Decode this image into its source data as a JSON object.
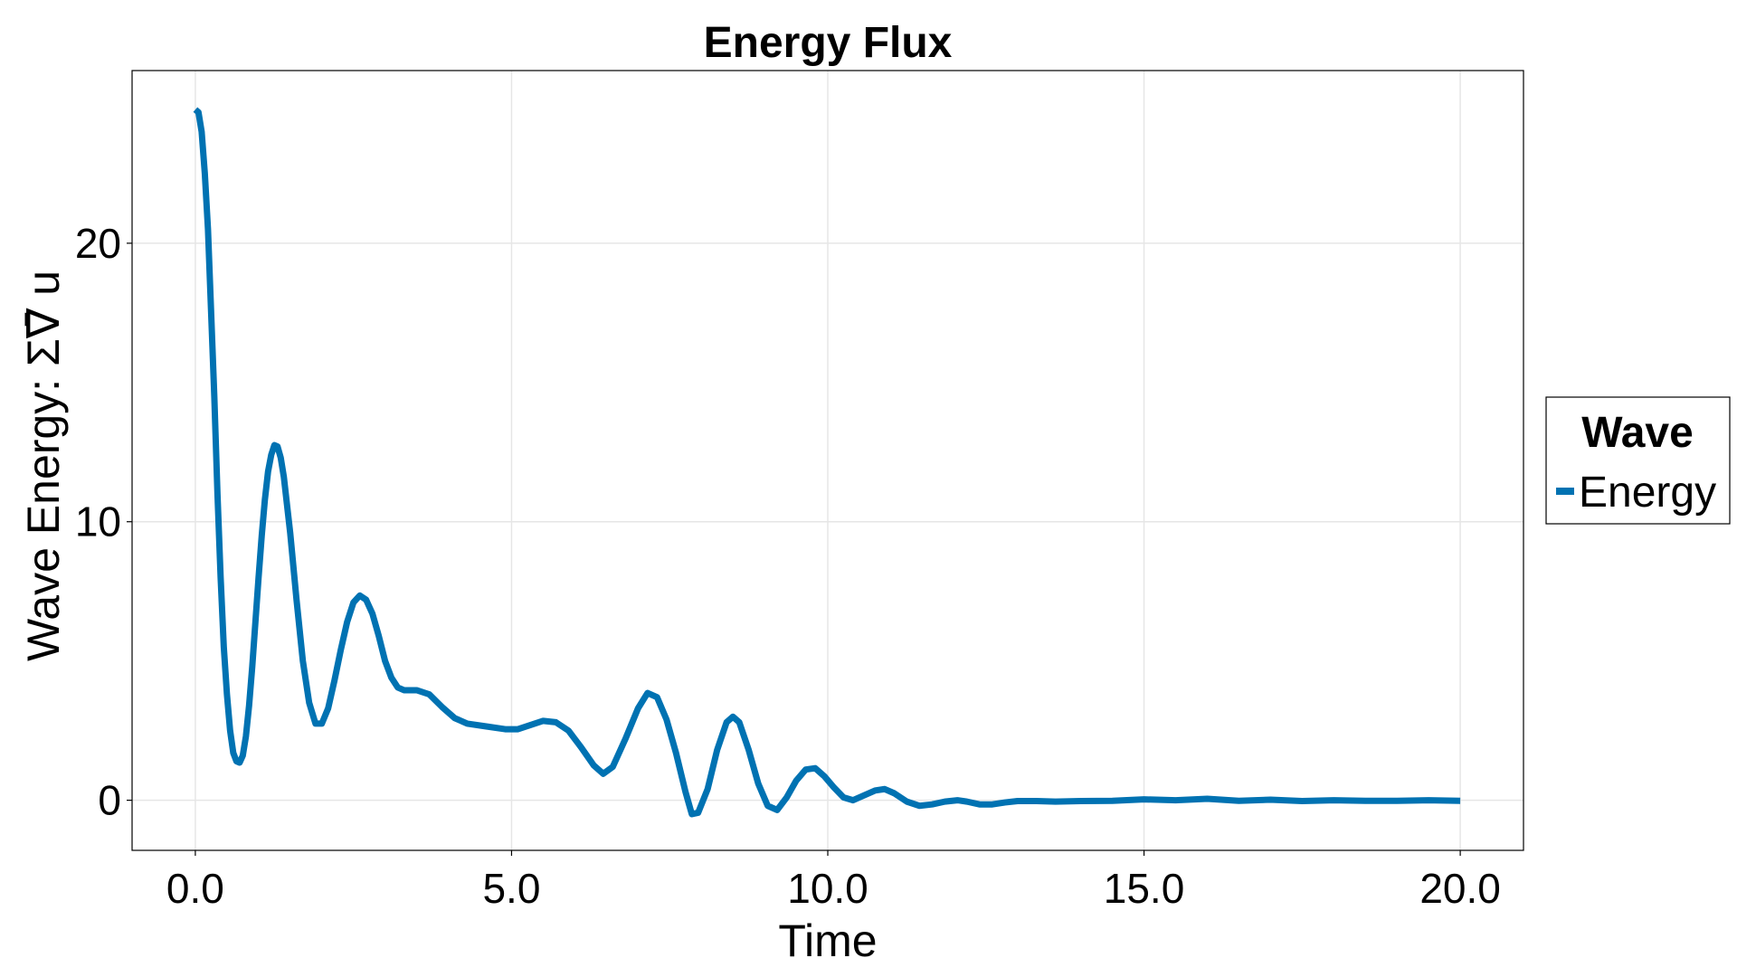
{
  "chart_data": {
    "type": "line",
    "title": "Energy Flux",
    "xlabel": "Time",
    "ylabel": "Wave Energy: Σ∇̄ u",
    "xlim": [
      -1.0,
      21.0
    ],
    "ylim": [
      -1.8,
      26.2
    ],
    "xticks": [
      0,
      5,
      10,
      15,
      20
    ],
    "xtick_labels": [
      "0.0",
      "5.0",
      "10.0",
      "15.0",
      "20.0"
    ],
    "yticks": [
      0,
      10,
      20
    ],
    "ytick_labels": [
      "0",
      "10",
      "20"
    ],
    "grid": true,
    "legend": {
      "title": "Wave",
      "placement": "outside-right",
      "entries": [
        "Energy"
      ]
    },
    "series": [
      {
        "name": "Energy",
        "color": "#0072b2",
        "points": [
          [
            0.0,
            24.8
          ],
          [
            0.05,
            24.7
          ],
          [
            0.1,
            24.0
          ],
          [
            0.15,
            22.5
          ],
          [
            0.2,
            20.5
          ],
          [
            0.25,
            17.5
          ],
          [
            0.3,
            14.5
          ],
          [
            0.35,
            11.0
          ],
          [
            0.4,
            8.0
          ],
          [
            0.45,
            5.5
          ],
          [
            0.5,
            3.8
          ],
          [
            0.55,
            2.5
          ],
          [
            0.6,
            1.7
          ],
          [
            0.65,
            1.4
          ],
          [
            0.7,
            1.35
          ],
          [
            0.75,
            1.6
          ],
          [
            0.8,
            2.3
          ],
          [
            0.85,
            3.4
          ],
          [
            0.9,
            4.8
          ],
          [
            0.95,
            6.4
          ],
          [
            1.0,
            8.0
          ],
          [
            1.05,
            9.5
          ],
          [
            1.1,
            10.8
          ],
          [
            1.15,
            11.8
          ],
          [
            1.2,
            12.4
          ],
          [
            1.25,
            12.75
          ],
          [
            1.3,
            12.7
          ],
          [
            1.35,
            12.3
          ],
          [
            1.4,
            11.6
          ],
          [
            1.5,
            9.6
          ],
          [
            1.6,
            7.2
          ],
          [
            1.7,
            5.0
          ],
          [
            1.8,
            3.5
          ],
          [
            1.9,
            2.75
          ],
          [
            2.0,
            2.75
          ],
          [
            2.1,
            3.3
          ],
          [
            2.2,
            4.3
          ],
          [
            2.3,
            5.4
          ],
          [
            2.4,
            6.4
          ],
          [
            2.5,
            7.1
          ],
          [
            2.6,
            7.35
          ],
          [
            2.7,
            7.2
          ],
          [
            2.8,
            6.7
          ],
          [
            2.9,
            5.9
          ],
          [
            3.0,
            5.0
          ],
          [
            3.1,
            4.4
          ],
          [
            3.2,
            4.05
          ],
          [
            3.3,
            3.95
          ],
          [
            3.5,
            3.95
          ],
          [
            3.7,
            3.8
          ],
          [
            3.9,
            3.35
          ],
          [
            4.1,
            2.95
          ],
          [
            4.3,
            2.75
          ],
          [
            4.6,
            2.65
          ],
          [
            4.9,
            2.55
          ],
          [
            5.1,
            2.55
          ],
          [
            5.3,
            2.7
          ],
          [
            5.5,
            2.85
          ],
          [
            5.7,
            2.8
          ],
          [
            5.9,
            2.5
          ],
          [
            6.1,
            1.9
          ],
          [
            6.3,
            1.25
          ],
          [
            6.45,
            0.95
          ],
          [
            6.6,
            1.2
          ],
          [
            6.8,
            2.2
          ],
          [
            7.0,
            3.3
          ],
          [
            7.15,
            3.85
          ],
          [
            7.3,
            3.7
          ],
          [
            7.45,
            2.9
          ],
          [
            7.6,
            1.7
          ],
          [
            7.75,
            0.3
          ],
          [
            7.85,
            -0.5
          ],
          [
            7.95,
            -0.45
          ],
          [
            8.1,
            0.4
          ],
          [
            8.25,
            1.8
          ],
          [
            8.4,
            2.8
          ],
          [
            8.5,
            3.0
          ],
          [
            8.6,
            2.8
          ],
          [
            8.75,
            1.8
          ],
          [
            8.9,
            0.6
          ],
          [
            9.05,
            -0.2
          ],
          [
            9.2,
            -0.35
          ],
          [
            9.35,
            0.1
          ],
          [
            9.5,
            0.7
          ],
          [
            9.65,
            1.1
          ],
          [
            9.8,
            1.15
          ],
          [
            9.95,
            0.85
          ],
          [
            10.1,
            0.45
          ],
          [
            10.25,
            0.1
          ],
          [
            10.4,
            0.0
          ],
          [
            10.55,
            0.15
          ],
          [
            10.75,
            0.35
          ],
          [
            10.9,
            0.4
          ],
          [
            11.05,
            0.25
          ],
          [
            11.25,
            -0.05
          ],
          [
            11.45,
            -0.2
          ],
          [
            11.65,
            -0.15
          ],
          [
            11.85,
            -0.05
          ],
          [
            12.05,
            0.0
          ],
          [
            12.2,
            -0.05
          ],
          [
            12.4,
            -0.15
          ],
          [
            12.6,
            -0.15
          ],
          [
            12.8,
            -0.08
          ],
          [
            13.0,
            -0.03
          ],
          [
            13.3,
            -0.03
          ],
          [
            13.6,
            -0.05
          ],
          [
            14.0,
            -0.03
          ],
          [
            14.5,
            -0.02
          ],
          [
            15.0,
            0.03
          ],
          [
            15.5,
            0.0
          ],
          [
            16.0,
            0.05
          ],
          [
            16.5,
            -0.02
          ],
          [
            17.0,
            0.02
          ],
          [
            17.5,
            -0.03
          ],
          [
            18.0,
            0.0
          ],
          [
            18.5,
            -0.02
          ],
          [
            19.0,
            -0.02
          ],
          [
            19.5,
            0.0
          ],
          [
            20.0,
            -0.02
          ]
        ]
      }
    ]
  }
}
